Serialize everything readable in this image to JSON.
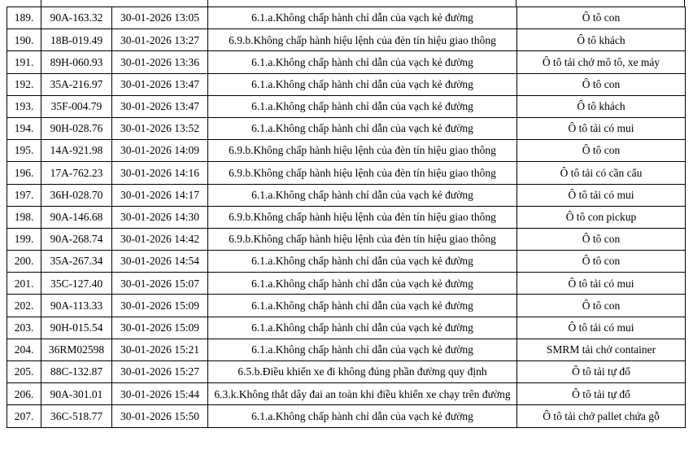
{
  "table": {
    "fields": "no,plate,datetime,violation,vehicle",
    "rows": [
      {
        "no": "189.",
        "plate": "90A-163.32",
        "datetime": "30-01-2026 13:05",
        "violation": "6.1.a.Không chấp hành chỉ dẫn của vạch kẻ đường",
        "vehicle": "Ô tô con"
      },
      {
        "no": "190.",
        "plate": "18B-019.49",
        "datetime": "30-01-2026 13:27",
        "violation": "6.9.b.Không chấp hành hiệu lệnh của đèn tín hiệu giao thông",
        "vehicle": "Ô tô khách"
      },
      {
        "no": "191.",
        "plate": "89H-060.93",
        "datetime": "30-01-2026 13:36",
        "violation": "6.1.a.Không chấp hành chỉ dẫn của vạch kẻ đường",
        "vehicle": "Ô tô tải chở mô tô, xe máy"
      },
      {
        "no": "192.",
        "plate": "35A-216.97",
        "datetime": "30-01-2026 13:47",
        "violation": "6.1.a.Không chấp hành chỉ dẫn của vạch kẻ đường",
        "vehicle": "Ô tô con"
      },
      {
        "no": "193.",
        "plate": "35F-004.79",
        "datetime": "30-01-2026 13:47",
        "violation": "6.1.a.Không chấp hành chỉ dẫn của vạch kẻ đường",
        "vehicle": "Ô tô khách"
      },
      {
        "no": "194.",
        "plate": "90H-028.76",
        "datetime": "30-01-2026 13:52",
        "violation": "6.1.a.Không chấp hành chỉ dẫn của vạch kẻ đường",
        "vehicle": "Ô tô tải có mui"
      },
      {
        "no": "195.",
        "plate": "14A-921.98",
        "datetime": "30-01-2026 14:09",
        "violation": "6.9.b.Không chấp hành hiệu lệnh của đèn tín hiệu giao thông",
        "vehicle": "Ô tô con"
      },
      {
        "no": "196.",
        "plate": "17A-762.23",
        "datetime": "30-01-2026 14:16",
        "violation": "6.9.b.Không chấp hành hiệu lệnh của đèn tín hiệu giao thông",
        "vehicle": "Ô tô tải có cần cẩu"
      },
      {
        "no": "197.",
        "plate": "36H-028.70",
        "datetime": "30-01-2026 14:17",
        "violation": "6.1.a.Không chấp hành chỉ dẫn của vạch kẻ đường",
        "vehicle": "Ô tô tải có mui"
      },
      {
        "no": "198.",
        "plate": "90A-146.68",
        "datetime": "30-01-2026 14:30",
        "violation": "6.9.b.Không chấp hành hiệu lệnh của đèn tín hiệu giao thông",
        "vehicle": "Ô tô con pickup"
      },
      {
        "no": "199.",
        "plate": "90A-268.74",
        "datetime": "30-01-2026 14:42",
        "violation": "6.9.b.Không chấp hành hiệu lệnh của đèn tín hiệu giao thông",
        "vehicle": "Ô tô con"
      },
      {
        "no": "200.",
        "plate": "35A-267.34",
        "datetime": "30-01-2026 14:54",
        "violation": "6.1.a.Không chấp hành chỉ dẫn của vạch kẻ đường",
        "vehicle": "Ô tô con"
      },
      {
        "no": "201.",
        "plate": "35C-127.40",
        "datetime": "30-01-2026 15:07",
        "violation": "6.1.a.Không chấp hành chỉ dẫn của vạch kẻ đường",
        "vehicle": "Ô tô tải có mui"
      },
      {
        "no": "202.",
        "plate": "90A-113.33",
        "datetime": "30-01-2026 15:09",
        "violation": "6.1.a.Không chấp hành chỉ dẫn của vạch kẻ đường",
        "vehicle": "Ô tô con"
      },
      {
        "no": "203.",
        "plate": "90H-015.54",
        "datetime": "30-01-2026 15:09",
        "violation": "6.1.a.Không chấp hành chỉ dẫn của vạch kẻ đường",
        "vehicle": "Ô tô tải có mui"
      },
      {
        "no": "204.",
        "plate": "36RM02598",
        "datetime": "30-01-2026 15:21",
        "violation": "6.1.a.Không chấp hành chỉ dẫn của vạch kẻ đường",
        "vehicle": "SMRM tải chở container"
      },
      {
        "no": "205.",
        "plate": "88C-132.87",
        "datetime": "30-01-2026 15:27",
        "violation": "6.5.b.Điều khiển xe đi không đúng phần đường quy định",
        "vehicle": "Ô tô tải tự đổ"
      },
      {
        "no": "206.",
        "plate": "90A-301.01",
        "datetime": "30-01-2026 15:44",
        "violation": "6.3.k.Không thắt dây đai an toàn khi điều khiển xe chạy trên đường",
        "vehicle": "Ô tô tải tự đổ"
      },
      {
        "no": "207.",
        "plate": "36C-518.77",
        "datetime": "30-01-2026 15:50",
        "violation": "6.1.a.Không chấp hành chỉ dẫn của vạch kẻ đường",
        "vehicle": "Ô tô tải chở pallet chứa gỗ"
      }
    ]
  }
}
